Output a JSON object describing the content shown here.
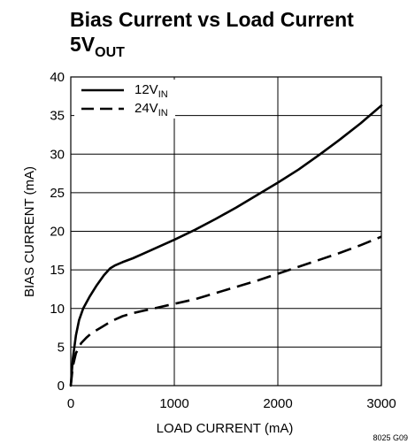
{
  "chart_data": {
    "type": "line",
    "title": "Bias Current vs Load Current",
    "subtitle": {
      "main": "5V",
      "sub": "OUT"
    },
    "xlabel": "LOAD CURRENT (mA)",
    "ylabel": "BIAS CURRENT (mA)",
    "xlim": [
      0,
      3000
    ],
    "ylim": [
      0,
      40
    ],
    "xticks": [
      0,
      1000,
      2000,
      3000
    ],
    "yticks": [
      0,
      5,
      10,
      15,
      20,
      25,
      30,
      35,
      40
    ],
    "grid": true,
    "legend_position": "top-left",
    "figure_code": "8025 G09",
    "series": [
      {
        "name": "12V",
        "name_sub": "IN",
        "style": "solid",
        "x": [
          0,
          20,
          50,
          80,
          120,
          180,
          250,
          320,
          380,
          430,
          500,
          600,
          700,
          800,
          1000,
          1200,
          1400,
          1600,
          1800,
          2000,
          2200,
          2400,
          2600,
          2800,
          3000
        ],
        "y": [
          0,
          3.5,
          6.5,
          8.5,
          10,
          11.5,
          13,
          14.3,
          15.2,
          15.6,
          16,
          16.5,
          17.1,
          17.7,
          18.9,
          20.2,
          21.6,
          23.1,
          24.7,
          26.3,
          28,
          29.9,
          31.9,
          34,
          36.3
        ]
      },
      {
        "name": "24V",
        "name_sub": "IN",
        "style": "dashed",
        "x": [
          0,
          20,
          50,
          100,
          150,
          200,
          300,
          400,
          500,
          600,
          700,
          800,
          1000,
          1200,
          1400,
          1600,
          1800,
          2000,
          2200,
          2400,
          2600,
          2800,
          3000
        ],
        "y": [
          0,
          2.5,
          4.2,
          5.5,
          6.2,
          6.8,
          7.6,
          8.4,
          9,
          9.4,
          9.7,
          10,
          10.6,
          11.2,
          12,
          12.8,
          13.6,
          14.5,
          15.4,
          16.3,
          17.2,
          18.2,
          19.3
        ]
      }
    ]
  }
}
